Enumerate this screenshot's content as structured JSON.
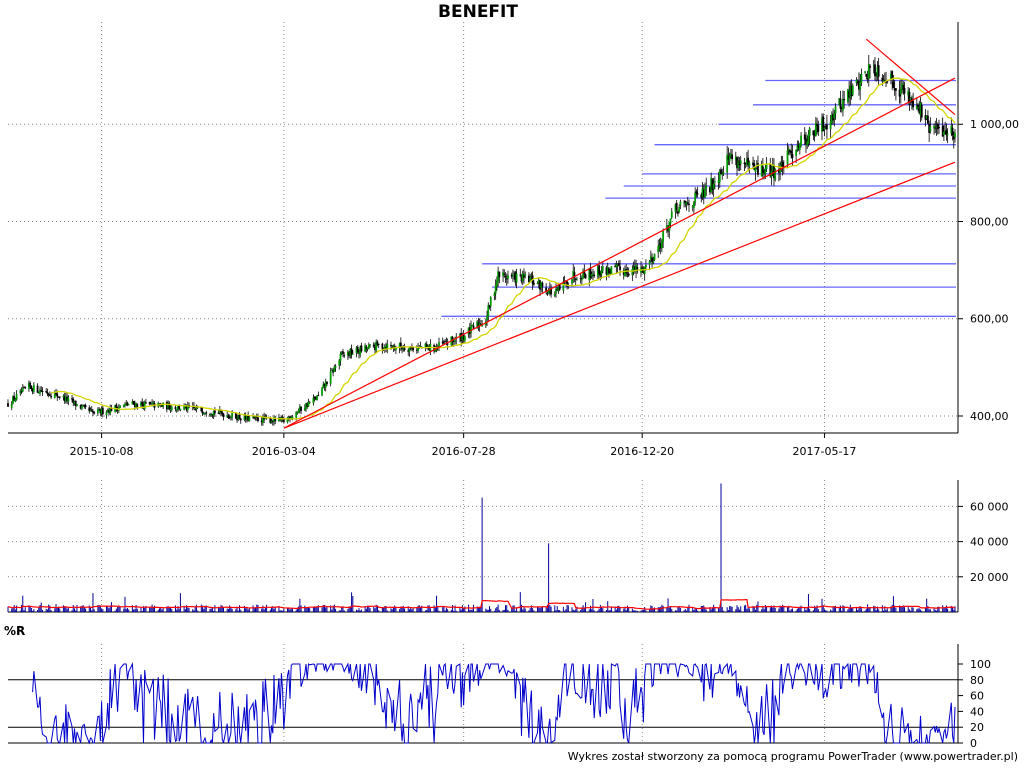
{
  "chart_data": [
    {
      "type": "candlestick",
      "title": "BENEFIT",
      "x_tick_labels": [
        "2015-10-08",
        "2016-03-04",
        "2016-07-28",
        "2016-12-20",
        "2017-05-17"
      ],
      "x_range": [
        "2015-07-24",
        "2017-08-31"
      ],
      "y_tick_labels": [
        "400,00",
        "600,00",
        "800,00",
        "1 000,00"
      ],
      "y_ticks": [
        400,
        600,
        800,
        1000
      ],
      "ylim": [
        365,
        1200
      ],
      "price_path": [
        [
          "2015-07-24",
          425
        ],
        [
          "2015-08-10",
          460
        ],
        [
          "2015-09-05",
          440
        ],
        [
          "2015-10-01",
          405
        ],
        [
          "2015-11-01",
          425
        ],
        [
          "2015-12-01",
          420
        ],
        [
          "2016-01-05",
          410
        ],
        [
          "2016-02-01",
          395
        ],
        [
          "2016-03-04",
          390
        ],
        [
          "2016-04-01",
          440
        ],
        [
          "2016-04-20",
          525
        ],
        [
          "2016-05-20",
          545
        ],
        [
          "2016-06-20",
          540
        ],
        [
          "2016-07-05",
          540
        ],
        [
          "2016-07-28",
          565
        ],
        [
          "2016-08-15",
          600
        ],
        [
          "2016-08-25",
          690
        ],
        [
          "2016-09-20",
          680
        ],
        [
          "2016-10-01",
          665
        ],
        [
          "2016-10-10",
          650
        ],
        [
          "2016-10-25",
          690
        ],
        [
          "2016-11-20",
          700
        ],
        [
          "2016-12-20",
          700
        ],
        [
          "2017-01-01",
          740
        ],
        [
          "2017-01-15",
          820
        ],
        [
          "2017-02-10",
          860
        ],
        [
          "2017-03-01",
          935
        ],
        [
          "2017-03-20",
          905
        ],
        [
          "2017-04-10",
          905
        ],
        [
          "2017-04-25",
          960
        ],
        [
          "2017-05-17",
          1000
        ],
        [
          "2017-06-05",
          1060
        ],
        [
          "2017-06-25",
          1120
        ],
        [
          "2017-07-15",
          1080
        ],
        [
          "2017-08-01",
          1040
        ],
        [
          "2017-08-10",
          990
        ],
        [
          "2017-08-31",
          985
        ]
      ],
      "moving_average_color": "#d4d400",
      "trendlines": [
        {
          "color": "#ff0000",
          "points": [
            [
              "2016-03-04",
              375
            ],
            [
              "2017-08-31",
              1095
            ]
          ]
        },
        {
          "color": "#ff0000",
          "points": [
            [
              "2016-03-04",
              375
            ],
            [
              "2017-08-31",
              922
            ]
          ]
        },
        {
          "color": "#ff0000",
          "points": [
            [
              "2017-06-20",
              1175
            ],
            [
              "2017-08-31",
              1020
            ]
          ]
        }
      ],
      "support_resistance_levels": [
        {
          "y": 605,
          "from": "2016-07-10"
        },
        {
          "y": 665,
          "from": "2016-08-20"
        },
        {
          "y": 713,
          "from": "2016-08-12"
        },
        {
          "y": 848,
          "from": "2016-11-20"
        },
        {
          "y": 873,
          "from": "2016-12-05"
        },
        {
          "y": 898,
          "from": "2016-12-20"
        },
        {
          "y": 958,
          "from": "2016-12-30"
        },
        {
          "y": 1000,
          "from": "2017-02-20"
        },
        {
          "y": 1040,
          "from": "2017-03-20"
        },
        {
          "y": 1090,
          "from": "2017-03-30"
        }
      ],
      "level_color": "#6666ff",
      "candle_up_color": "#009900",
      "candle_down_color": "#000000"
    },
    {
      "type": "bar",
      "name": "volume",
      "y_tick_labels": [
        "20 000",
        "40 000",
        "60 000"
      ],
      "y_ticks": [
        20000,
        40000,
        60000
      ],
      "ylim": [
        0,
        75000
      ],
      "spikes": [
        {
          "x": "2016-08-12",
          "value": 65000
        },
        {
          "x": "2016-10-05",
          "value": 39000
        },
        {
          "x": "2017-02-22",
          "value": 73000
        }
      ],
      "typical_level": 3000,
      "bar_color": "#000099",
      "average_color": "#ff0000"
    },
    {
      "type": "line",
      "name": "%R",
      "label": "%R",
      "y_tick_labels": [
        "100",
        "80",
        "60",
        "40",
        "20",
        "0"
      ],
      "y_ticks": [
        100,
        80,
        60,
        40,
        20,
        0
      ],
      "ylim": [
        0,
        100
      ],
      "reference_lines": [
        80,
        20
      ],
      "line_color": "#0000cc"
    }
  ],
  "footer": "Wykres został stworzony za pomocą programu PowerTrader (www.powertrader.pl)"
}
